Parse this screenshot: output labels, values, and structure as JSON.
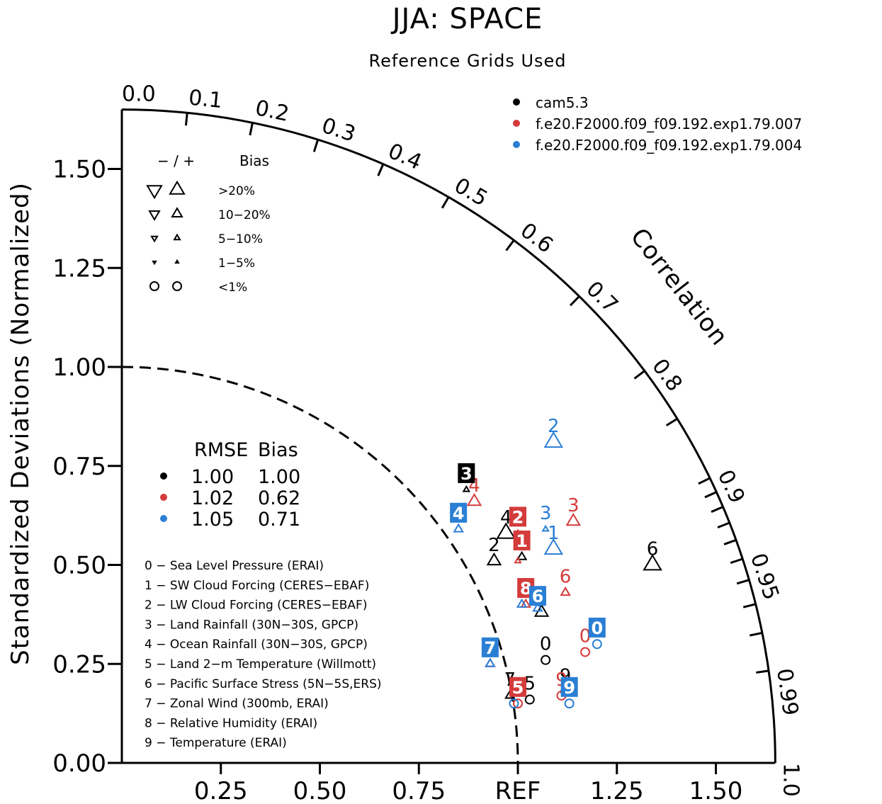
{
  "chart_data": {
    "type": "scatter",
    "title": "JJA: SPACE",
    "subtitle": "Reference Grids Used",
    "ylabel": "Standardized Deviations (Normalized)",
    "correlation_label": "Correlation",
    "ref_label": "REF",
    "ylim": [
      0,
      1.65
    ],
    "x_ticks": [
      "0.25",
      "0.50",
      "0.75",
      "REF",
      "1.25",
      "1.50"
    ],
    "x_tick_values": [
      0.25,
      0.5,
      0.75,
      1.0,
      1.25,
      1.5
    ],
    "y_ticks": [
      "0.00",
      "0.25",
      "0.50",
      "0.75",
      "1.00",
      "1.25",
      "1.50"
    ],
    "y_tick_values": [
      0,
      0.25,
      0.5,
      0.75,
      1.0,
      1.25,
      1.5
    ],
    "corr_labels": [
      "0.0",
      "0.1",
      "0.2",
      "0.3",
      "0.4",
      "0.5",
      "0.6",
      "0.7",
      "0.8",
      "0.9",
      "0.95",
      "0.99",
      "1.0"
    ],
    "corr_label_values": [
      0.0,
      0.1,
      0.2,
      0.3,
      0.4,
      0.5,
      0.6,
      0.7,
      0.8,
      0.9,
      0.95,
      0.99,
      1.0
    ],
    "corr_tick_values": [
      0.1,
      0.2,
      0.3,
      0.4,
      0.5,
      0.6,
      0.7,
      0.8,
      0.85,
      0.9,
      0.91,
      0.92,
      0.93,
      0.94,
      0.95,
      0.96,
      0.97,
      0.98,
      0.99
    ],
    "ref_arc_radius": 1.0,
    "series": [
      {
        "name": "cam5.3",
        "color": "#000000",
        "rmse": "1.00",
        "bias": "1.00",
        "points": [
          {
            "id": "0",
            "x": 1.07,
            "y": 0.26,
            "marker": "circle"
          },
          {
            "id": "1",
            "x": 1.01,
            "y": 0.52,
            "marker": "up-small"
          },
          {
            "id": "2",
            "x": 0.94,
            "y": 0.51,
            "marker": "up-mid"
          },
          {
            "id": "3",
            "x": 0.87,
            "y": 0.69,
            "marker": "up-tiny"
          },
          {
            "id": "4",
            "x": 0.97,
            "y": 0.58,
            "marker": "up-large"
          },
          {
            "id": "5",
            "x": 1.03,
            "y": 0.16,
            "marker": "circle"
          },
          {
            "id": "6",
            "x": 1.34,
            "y": 0.5,
            "marker": "up-large"
          },
          {
            "id": "7",
            "x": 0.98,
            "y": 0.17,
            "marker": "up-small"
          },
          {
            "id": "8",
            "x": 1.06,
            "y": 0.38,
            "marker": "up-mid"
          },
          {
            "id": "9",
            "x": 1.12,
            "y": 0.18,
            "marker": "circle"
          }
        ]
      },
      {
        "name": "f.e20.F2000.f09_f09.192.exp1.79.007",
        "color": "#d43b3b",
        "rmse": "1.02",
        "bias": "0.62",
        "points": [
          {
            "id": "0",
            "x": 1.17,
            "y": 0.28,
            "marker": "circle"
          },
          {
            "id": "1",
            "x": 1.0,
            "y": 0.51,
            "marker": "up-tiny"
          },
          {
            "id": "2",
            "x": 1.0,
            "y": 0.58,
            "marker": "up-tiny"
          },
          {
            "id": "3",
            "x": 1.14,
            "y": 0.61,
            "marker": "up-mid"
          },
          {
            "id": "4",
            "x": 0.89,
            "y": 0.66,
            "marker": "up-mid"
          },
          {
            "id": "5",
            "x": 1.0,
            "y": 0.15,
            "marker": "circle"
          },
          {
            "id": "6",
            "x": 1.12,
            "y": 0.43,
            "marker": "up-small"
          },
          {
            "id": "7",
            "x": 0.93,
            "y": 0.25,
            "marker": "up-small"
          },
          {
            "id": "8",
            "x": 1.02,
            "y": 0.4,
            "marker": "up-small"
          },
          {
            "id": "9",
            "x": 1.11,
            "y": 0.17,
            "marker": "circle"
          }
        ]
      },
      {
        "name": "f.e20.F2000.f09_f09.192.exp1.79.004",
        "color": "#2a7fd4",
        "rmse": "1.05",
        "bias": "0.71",
        "points": [
          {
            "id": "0",
            "x": 1.2,
            "y": 0.3,
            "marker": "circle"
          },
          {
            "id": "1",
            "x": 1.09,
            "y": 0.54,
            "marker": "up-large"
          },
          {
            "id": "2",
            "x": 1.09,
            "y": 0.81,
            "marker": "up-large"
          },
          {
            "id": "3",
            "x": 1.07,
            "y": 0.59,
            "marker": "up-tiny"
          },
          {
            "id": "4",
            "x": 0.85,
            "y": 0.59,
            "marker": "up-small"
          },
          {
            "id": "5",
            "x": 0.99,
            "y": 0.15,
            "marker": "circle"
          },
          {
            "id": "6",
            "x": 1.05,
            "y": 0.39,
            "marker": "up-small"
          },
          {
            "id": "7",
            "x": 0.93,
            "y": 0.25,
            "marker": "up-small"
          },
          {
            "id": "8",
            "x": 1.01,
            "y": 0.4,
            "marker": "up-small"
          },
          {
            "id": "9",
            "x": 1.13,
            "y": 0.15,
            "marker": "circle"
          }
        ]
      }
    ],
    "boxed_labels": [
      {
        "id": "3",
        "series": 0,
        "x": 0.87,
        "y": 0.73
      },
      {
        "id": "2",
        "series": 1,
        "x": 1.0,
        "y": 0.62
      },
      {
        "id": "1",
        "series": 1,
        "x": 1.01,
        "y": 0.56
      },
      {
        "id": "8",
        "series": 1,
        "x": 1.02,
        "y": 0.44
      },
      {
        "id": "5",
        "series": 1,
        "x": 1.0,
        "y": 0.19
      },
      {
        "id": "7",
        "series": 2,
        "x": 0.93,
        "y": 0.29
      },
      {
        "id": "4",
        "series": 2,
        "x": 0.85,
        "y": 0.63
      },
      {
        "id": "6",
        "series": 2,
        "x": 1.05,
        "y": 0.42
      },
      {
        "id": "0",
        "series": 2,
        "x": 1.2,
        "y": 0.34
      },
      {
        "id": "9",
        "series": 2,
        "x": 1.13,
        "y": 0.19
      }
    ],
    "bias_legend": {
      "header": "− / +",
      "header_right": "Bias",
      "rows": [
        ">20%",
        "10−20%",
        "5−10%",
        "1−5%",
        "<1%"
      ]
    },
    "rmse_legend": {
      "header_rmse": "RMSE",
      "header_bias": "Bias"
    },
    "variables": [
      "0 − Sea Level Pressure (ERAI)",
      "1 − SW Cloud Forcing (CERES−EBAF)",
      "2 − LW Cloud Forcing (CERES−EBAF)",
      "3 − Land Rainfall (30N−30S, GPCP)",
      "4 − Ocean Rainfall (30N−30S, GPCP)",
      "5 − Land 2−m Temperature (Willmott)",
      "6 − Pacific Surface Stress (5N−5S,ERS)",
      "7 − Zonal Wind (300mb, ERAI)",
      "8 − Relative Humidity (ERAI)",
      "9 − Temperature (ERAI)"
    ]
  }
}
